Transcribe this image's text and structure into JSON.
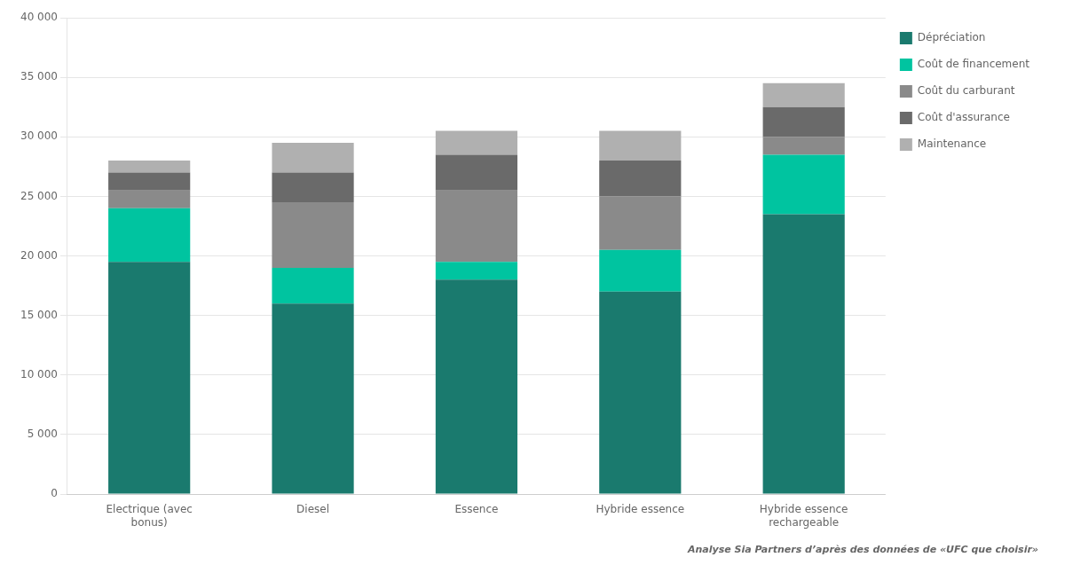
{
  "chart_data": {
    "type": "bar",
    "stacked": true,
    "categories": [
      "Electrique (avec\nbonus)",
      "Diesel",
      "Essence",
      "Hybride essence",
      "Hybride essence\nrechargeable"
    ],
    "series": [
      {
        "name": "Dépréciation",
        "color": "#1a7a6e",
        "values": [
          19500,
          16000,
          18000,
          17000,
          23500
        ]
      },
      {
        "name": "Coût de financement",
        "color": "#00c4a0",
        "values": [
          4500,
          3000,
          1500,
          3500,
          5000
        ]
      },
      {
        "name": "Coût du carburant",
        "color": "#8a8a8a",
        "values": [
          1500,
          5500,
          6000,
          4500,
          1500
        ]
      },
      {
        "name": "Coût d'assurance",
        "color": "#6a6a6a",
        "values": [
          1500,
          2500,
          3000,
          3000,
          2500
        ]
      },
      {
        "name": "Maintenance",
        "color": "#b0b0b0",
        "values": [
          1000,
          2500,
          2000,
          2500,
          2000
        ]
      }
    ],
    "ylim": [
      0,
      40000
    ],
    "yticks": [
      0,
      {
        "value": 5000,
        "label": "5 000"
      },
      {
        "value": 10000,
        "label": "10 000"
      },
      {
        "value": 15000,
        "label": "15 000"
      },
      {
        "value": 20000,
        "label": "20 000"
      },
      {
        "value": 25000,
        "label": "25 000"
      },
      {
        "value": 30000,
        "label": "30 000"
      },
      {
        "value": 35000,
        "label": "35 000"
      },
      {
        "value": 40000,
        "label": "40 000"
      }
    ],
    "grid": true,
    "legend": "right",
    "footnote": "Analyse Sia Partners d’après des données de «UFC que choisir»"
  }
}
